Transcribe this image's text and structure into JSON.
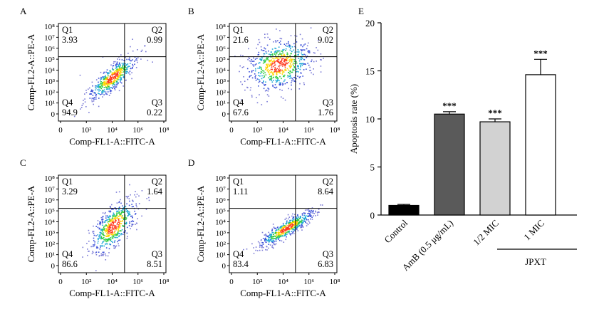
{
  "chart_data": [
    {
      "type": "scatter",
      "panel": "A",
      "xlabel": "Comp-FL1-A::FITC-A",
      "ylabel": "Comp-FL2-A::PE-A",
      "x_ticks": [
        "0",
        "10²",
        "10⁴",
        "10⁶",
        "10⁸"
      ],
      "y_ticks": [
        "0",
        "10¹",
        "10²",
        "10³",
        "10⁴",
        "10⁵",
        "10⁶",
        "10⁷",
        "10⁸"
      ],
      "quadrants": [
        {
          "name": "Q1",
          "value": "3.93"
        },
        {
          "name": "Q2",
          "value": "0.99"
        },
        {
          "name": "Q4",
          "value": "94.9"
        },
        {
          "name": "Q3",
          "value": "0.22"
        }
      ]
    },
    {
      "type": "scatter",
      "panel": "B",
      "xlabel": "Comp-FL1-A::FITC-A",
      "ylabel": "Comp-FL2-A::PE-A",
      "x_ticks": [
        "0",
        "10²",
        "10⁴",
        "10⁶",
        "10⁸"
      ],
      "y_ticks": [
        "0",
        "10¹",
        "10²",
        "10³",
        "10⁴",
        "10⁵",
        "10⁶",
        "10⁷",
        "10⁸"
      ],
      "quadrants": [
        {
          "name": "Q1",
          "value": "21.6"
        },
        {
          "name": "Q2",
          "value": "9.02"
        },
        {
          "name": "Q4",
          "value": "67.6"
        },
        {
          "name": "Q3",
          "value": "1.76"
        }
      ]
    },
    {
      "type": "scatter",
      "panel": "C",
      "xlabel": "Comp-FL1-A::FITC-A",
      "ylabel": "Comp-FL2-A::PE-A",
      "x_ticks": [
        "0",
        "10²",
        "10⁴",
        "10⁶",
        "10⁸"
      ],
      "y_ticks": [
        "0",
        "10¹",
        "10²",
        "10³",
        "10⁴",
        "10⁵",
        "10⁶",
        "10⁷",
        "10⁸"
      ],
      "quadrants": [
        {
          "name": "Q1",
          "value": "3.29"
        },
        {
          "name": "Q2",
          "value": "1.64"
        },
        {
          "name": "Q4",
          "value": "86.6"
        },
        {
          "name": "Q3",
          "value": "8.51"
        }
      ]
    },
    {
      "type": "scatter",
      "panel": "D",
      "xlabel": "Comp-FL1-A::FITC-A",
      "ylabel": "Comp-FL2-A::PE-A",
      "x_ticks": [
        "0",
        "10²",
        "10⁴",
        "10⁶",
        "10⁸"
      ],
      "y_ticks": [
        "0",
        "10¹",
        "10²",
        "10³",
        "10⁴",
        "10⁵",
        "10⁶",
        "10⁷",
        "10⁸"
      ],
      "quadrants": [
        {
          "name": "Q1",
          "value": "1.11"
        },
        {
          "name": "Q2",
          "value": "8.64"
        },
        {
          "name": "Q4",
          "value": "83.4"
        },
        {
          "name": "Q3",
          "value": "6.83"
        }
      ]
    },
    {
      "type": "bar",
      "panel": "E",
      "categories": [
        "Control",
        "AmB (0.5 μg/mL)",
        "1/2 MIC",
        "1 MIC"
      ],
      "values": [
        1.0,
        10.5,
        9.7,
        14.6
      ],
      "errors": [
        0.1,
        0.25,
        0.3,
        1.6
      ],
      "colors": [
        "#000000",
        "#5a5a5a",
        "#d2d2d2",
        "#ffffff"
      ],
      "significance": [
        "",
        "***",
        "***",
        "***"
      ],
      "group_label": "JPXT",
      "ylabel": "Apoptosis rate (%)",
      "ylim": [
        0,
        20
      ],
      "yticks": [
        "0",
        "5",
        "10",
        "15",
        "20"
      ]
    }
  ]
}
